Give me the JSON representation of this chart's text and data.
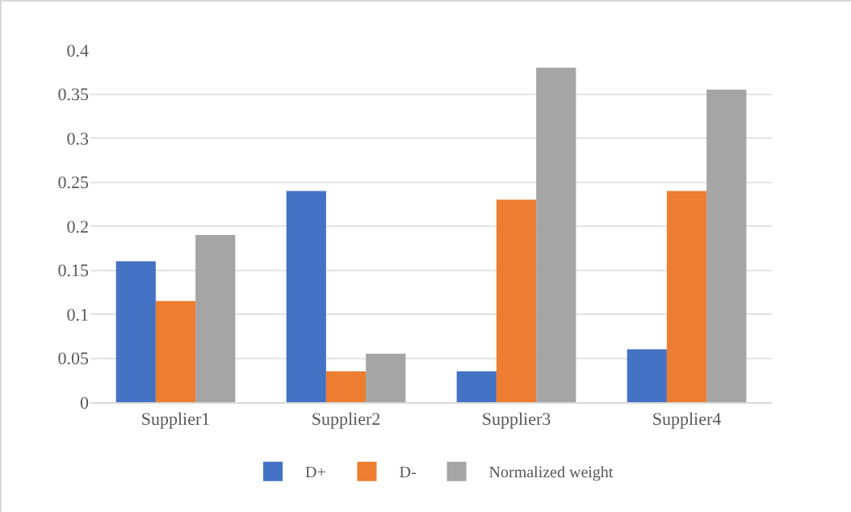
{
  "chart_data": {
    "type": "bar",
    "categories": [
      "Supplier1",
      "Supplier2",
      "Supplier3",
      "Supplier4"
    ],
    "series": [
      {
        "name": "D+",
        "color": "#4472c4",
        "values": [
          0.16,
          0.24,
          0.035,
          0.06
        ]
      },
      {
        "name": "D-",
        "color": "#ed7d31",
        "values": [
          0.115,
          0.035,
          0.23,
          0.24
        ]
      },
      {
        "name": "Normalized weight",
        "color": "#a5a5a5",
        "values": [
          0.19,
          0.055,
          0.38,
          0.355
        ]
      }
    ],
    "ylim": [
      0,
      0.4
    ],
    "yticks": [
      0,
      0.05,
      0.1,
      0.15,
      0.2,
      0.25,
      0.3,
      0.35,
      0.4
    ],
    "grid": "y",
    "legend": "bottom"
  }
}
